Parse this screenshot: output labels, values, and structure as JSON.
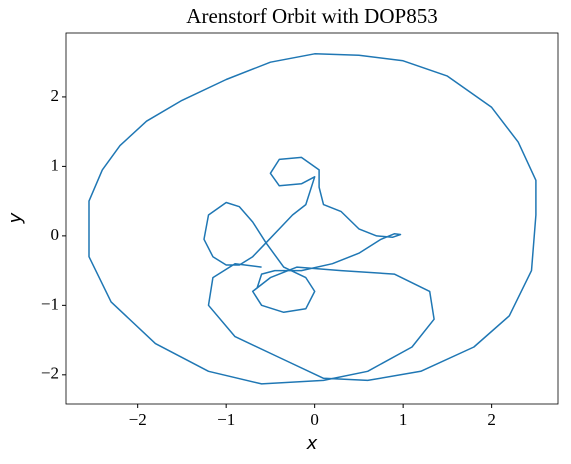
{
  "chart_data": {
    "type": "line",
    "title": "Arenstorf Orbit with DOP853",
    "xlabel": "x",
    "ylabel": "y",
    "xlim": [
      -2.81,
      2.75
    ],
    "ylim": [
      -2.42,
      2.92
    ],
    "xticks": [
      {
        "value": -2,
        "label": "−2"
      },
      {
        "value": -1,
        "label": "−1"
      },
      0,
      1,
      2
    ],
    "yticks": [
      {
        "value": -2,
        "label": "−2"
      },
      {
        "value": -1,
        "label": "−1"
      },
      0,
      1,
      2
    ],
    "series": [
      {
        "color": "#1f77b4",
        "x": [
          -0.65,
          -0.6,
          -0.45,
          -0.15,
          0.2,
          0.5,
          0.75,
          0.9,
          0.97,
          0.88,
          0.7,
          0.5,
          0.3,
          0.1,
          0.05,
          0.05,
          -0.15,
          -0.4,
          -0.5,
          -0.4,
          -0.15,
          0.0,
          -0.1,
          -0.25,
          -0.4,
          -0.55,
          -0.7,
          -0.85,
          -1.0,
          -1.15,
          -1.25,
          -1.2,
          -1.0,
          -0.85,
          -0.7,
          -0.55,
          -0.35,
          -0.1,
          0.0,
          -0.1,
          -0.35,
          -0.6,
          -0.7,
          -0.5,
          -0.2,
          0.3,
          0.9,
          1.3,
          1.35,
          1.1,
          0.6,
          0.1,
          -0.6,
          -1.2,
          -1.8,
          -2.3,
          -2.55,
          -2.55,
          -2.4,
          -2.2,
          -1.9,
          -1.5,
          -1.0,
          -0.5,
          0.0,
          0.5,
          1.0,
          1.5,
          2.0,
          2.3,
          2.5,
          2.5,
          2.45,
          2.2,
          1.8,
          1.2,
          0.6,
          0.1,
          -0.4,
          -0.9,
          -1.2,
          -1.15,
          -0.9,
          -0.6
        ],
        "y": [
          -0.75,
          -0.55,
          -0.5,
          -0.5,
          -0.4,
          -0.25,
          -0.05,
          0.03,
          0.02,
          -0.02,
          0.0,
          0.1,
          0.35,
          0.45,
          0.7,
          0.95,
          1.13,
          1.1,
          0.9,
          0.72,
          0.75,
          0.85,
          0.45,
          0.3,
          0.1,
          -0.1,
          -0.3,
          -0.42,
          -0.42,
          -0.3,
          -0.05,
          0.3,
          0.48,
          0.42,
          0.2,
          -0.1,
          -0.45,
          -0.6,
          -0.8,
          -1.05,
          -1.1,
          -1.0,
          -0.8,
          -0.6,
          -0.45,
          -0.5,
          -0.55,
          -0.8,
          -1.2,
          -1.6,
          -1.95,
          -2.08,
          -2.13,
          -1.95,
          -1.55,
          -0.95,
          -0.3,
          0.5,
          0.95,
          1.3,
          1.65,
          1.95,
          2.25,
          2.5,
          2.62,
          2.6,
          2.52,
          2.3,
          1.85,
          1.35,
          0.8,
          0.3,
          -0.5,
          -1.15,
          -1.6,
          -1.95,
          -2.08,
          -2.05,
          -1.75,
          -1.45,
          -1.0,
          -0.6,
          -0.4,
          -0.45
        ]
      }
    ]
  }
}
